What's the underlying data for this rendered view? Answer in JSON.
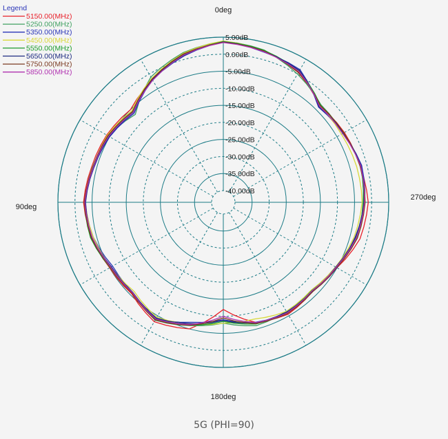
{
  "caption": "5G (PHI=90)",
  "chart_data": {
    "type": "polar",
    "legend": {
      "title": "Legend",
      "placement": "top-left"
    },
    "angle_labels": [
      {
        "deg": 0,
        "text": "0deg"
      },
      {
        "deg": 90,
        "text": "90deg"
      },
      {
        "deg": 180,
        "text": "180deg"
      },
      {
        "deg": 270,
        "text": "270deg"
      }
    ],
    "angle_direction": "counterclockwise",
    "zero_location": "top",
    "radial_unit": "dB",
    "radial_range": [
      -40,
      5
    ],
    "ring_labels": [
      "5.00dB",
      "0.00dB",
      "-5.00dB",
      "-10.00dB",
      "-15.00dB",
      "-20.00dB",
      "-25.00dB",
      "-30.00dB",
      "-35.00dB",
      "-40.00dB"
    ],
    "ring_values": [
      5,
      0,
      -5,
      -10,
      -15,
      -20,
      -25,
      -30,
      -35,
      -40
    ],
    "angles": [
      0,
      15,
      30,
      45,
      60,
      75,
      90,
      105,
      120,
      135,
      150,
      165,
      180,
      195,
      210,
      225,
      240,
      255,
      270,
      285,
      300,
      315,
      330,
      345
    ],
    "series": [
      {
        "name": "5150.00(MHz)",
        "color": "#e8202a",
        "values": [
          3.5,
          1.5,
          -2,
          -5,
          -4,
          -3.5,
          -2.5,
          -3.5,
          -5,
          -5.5,
          -3,
          -5,
          -12,
          -7,
          -5.5,
          -6.5,
          -5,
          -2,
          -1,
          -2,
          -2.5,
          -3.5,
          0.5,
          2.5
        ]
      },
      {
        "name": "5250.00(MHz)",
        "color": "#3fa060",
        "values": [
          3.8,
          2,
          -1,
          -7,
          -4.5,
          -4,
          -3,
          -3.5,
          -5.5,
          -6,
          -3.5,
          -6,
          -8,
          -6,
          -6.5,
          -7,
          -5.5,
          -3,
          -2.5,
          -1.8,
          -3,
          -3,
          0,
          2.8
        ]
      },
      {
        "name": "5350.00(MHz)",
        "color": "#2a35b8",
        "values": [
          3.6,
          1,
          -2,
          -6.5,
          -5,
          -4.2,
          -3,
          -4,
          -6,
          -6,
          -4,
          -7,
          -9,
          -7,
          -6,
          -6.5,
          -5,
          -3.5,
          -2,
          -1.5,
          -3,
          -4,
          1.5,
          2.2
        ]
      },
      {
        "name": "5450.00(MHz)",
        "color": "#d8d838",
        "values": [
          3.9,
          1.8,
          -1.5,
          -5.5,
          -4.2,
          -4,
          -3,
          -4,
          -5.5,
          -6.5,
          -4.5,
          -6.5,
          -8,
          -8,
          -6.5,
          -7,
          -5.5,
          -3.8,
          -2.8,
          -3,
          -3.5,
          -3.5,
          0.8,
          2.6
        ]
      },
      {
        "name": "5550.00(MHz)",
        "color": "#1a9a2a",
        "values": [
          3.7,
          1.4,
          -1.8,
          -6,
          -4.6,
          -3.8,
          -2.8,
          -3.2,
          -5.2,
          -5.8,
          -3.8,
          -6.2,
          -8.5,
          -6.5,
          -6.2,
          -6.8,
          -5.2,
          -3.2,
          -2.4,
          -1.9,
          -2.9,
          -3.2,
          1,
          2.7
        ]
      },
      {
        "name": "5650.00(MHz)",
        "color": "#1c2a80",
        "values": [
          3.6,
          1.2,
          -1.9,
          -6.2,
          -4.8,
          -4.1,
          -3.1,
          -3.6,
          -5.6,
          -6,
          -4.2,
          -6.6,
          -8.8,
          -6.8,
          -6.3,
          -6.6,
          -5.4,
          -3.4,
          -2.2,
          -1.7,
          -2.8,
          -3.8,
          1.2,
          2.4
        ]
      },
      {
        "name": "5750.00(MHz)",
        "color": "#7a3a20",
        "values": [
          3.5,
          1.6,
          -1.7,
          -5.8,
          -4.4,
          -3.9,
          -2.7,
          -3.4,
          -5.3,
          -5.7,
          -3.6,
          -6.1,
          -9.5,
          -6.6,
          -5.8,
          -6.4,
          -5.1,
          -2.8,
          -1.9,
          -2,
          -2.7,
          -3.3,
          0.6,
          2.5
        ]
      },
      {
        "name": "5850.00(MHz)",
        "color": "#b030b0",
        "values": [
          3.4,
          1.3,
          -2.1,
          -6.1,
          -4.7,
          -4,
          -2.9,
          -3.7,
          -5.4,
          -5.9,
          -3.9,
          -6.3,
          -10,
          -6.9,
          -6,
          -6.7,
          -5.3,
          -3.1,
          -2.1,
          -1.8,
          -3.1,
          -3.6,
          0.9,
          2.3
        ]
      }
    ]
  }
}
